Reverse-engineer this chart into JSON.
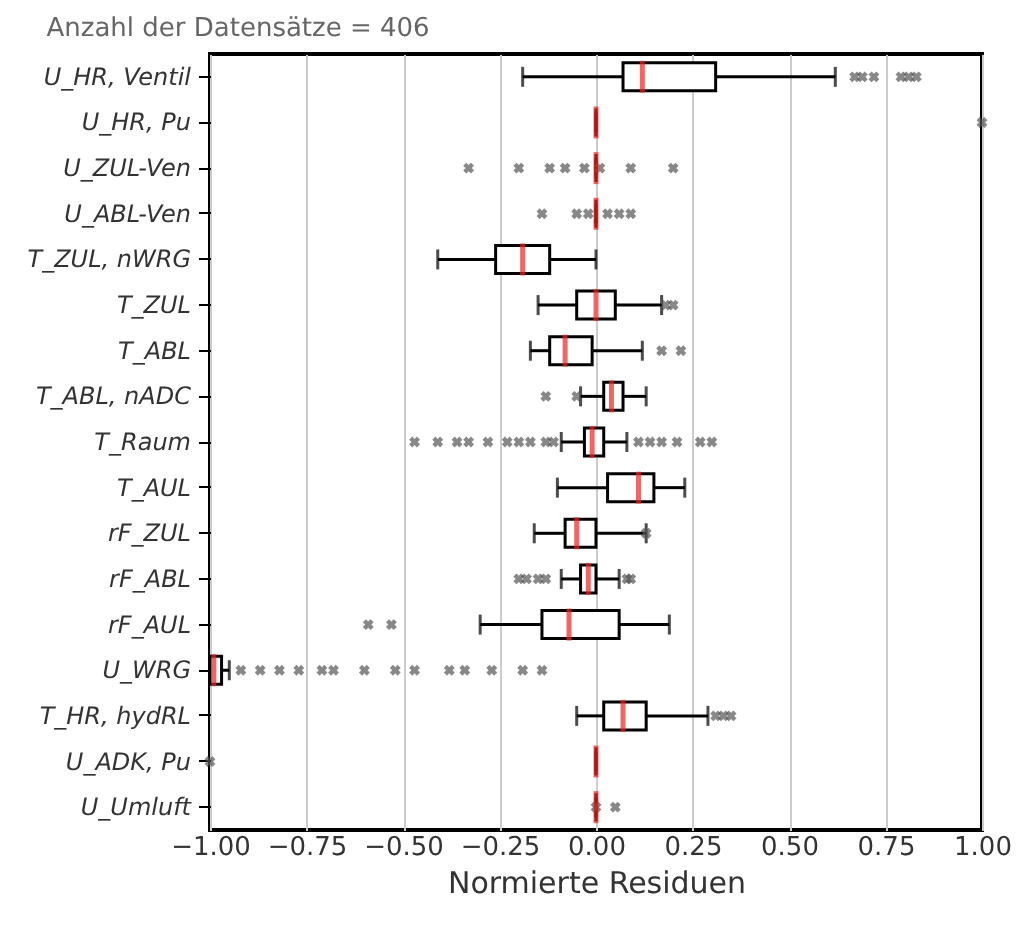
{
  "chart_data": {
    "type": "box",
    "title": "Anzahl der Datensätze = 406",
    "xlabel": "Normierte Residuen",
    "orientation": "horizontal",
    "categories": [
      "U_HR, Ventil",
      "U_HR, Pu",
      "U_ZUL-Ven",
      "U_ABL-Ven",
      "T_ZUL, nWRG",
      "T_ZUL",
      "T_ABL",
      "T_ABL, nADC",
      "T_Raum",
      "T_AUL",
      "rF_ZUL",
      "rF_ABL",
      "rF_AUL",
      "U_WRG",
      "T_HR, hydRL",
      "U_ADK, Pu",
      "U_Umluft"
    ],
    "boxes": [
      {
        "low": -0.19,
        "q1": 0.07,
        "median": 0.12,
        "q3": 0.31,
        "high": 0.62,
        "outliers": [
          0.67,
          0.69,
          0.72,
          0.79,
          0.81,
          0.83
        ]
      },
      {
        "low": 0,
        "q1": 0,
        "median": 0,
        "q3": 0,
        "high": 0,
        "outliers": [
          1.0
        ]
      },
      {
        "low": 0,
        "q1": 0,
        "median": 0,
        "q3": 0,
        "high": 0,
        "outliers": [
          -0.33,
          -0.2,
          -0.12,
          -0.08,
          -0.03,
          0.01,
          0.09,
          0.2
        ]
      },
      {
        "low": 0,
        "q1": 0,
        "median": 0,
        "q3": 0,
        "high": 0,
        "outliers": [
          -0.14,
          -0.05,
          -0.02,
          0.03,
          0.06,
          0.09
        ]
      },
      {
        "low": -0.41,
        "q1": -0.26,
        "median": -0.19,
        "q3": -0.12,
        "high": 0.0
      },
      {
        "low": -0.15,
        "q1": -0.05,
        "median": 0.0,
        "q3": 0.05,
        "high": 0.17,
        "outliers": [
          0.18,
          0.2
        ]
      },
      {
        "low": -0.17,
        "q1": -0.12,
        "median": -0.08,
        "q3": -0.01,
        "high": 0.12,
        "outliers": [
          0.17,
          0.22
        ]
      },
      {
        "low": -0.04,
        "q1": 0.02,
        "median": 0.04,
        "q3": 0.07,
        "high": 0.13,
        "outliers": [
          -0.13,
          -0.05
        ]
      },
      {
        "low": -0.09,
        "q1": -0.03,
        "median": -0.01,
        "q3": 0.02,
        "high": 0.08,
        "outliers": [
          -0.47,
          -0.41,
          -0.36,
          -0.33,
          -0.28,
          -0.23,
          -0.2,
          -0.17,
          -0.13,
          -0.11,
          0.11,
          0.14,
          0.17,
          0.21,
          0.27,
          0.3
        ]
      },
      {
        "low": -0.1,
        "q1": 0.03,
        "median": 0.11,
        "q3": 0.15,
        "high": 0.23
      },
      {
        "low": -0.16,
        "q1": -0.08,
        "median": -0.05,
        "q3": 0.0,
        "high": 0.13,
        "outliers": [
          0.13
        ]
      },
      {
        "low": -0.09,
        "q1": -0.04,
        "median": -0.02,
        "q3": 0.0,
        "high": 0.06,
        "outliers": [
          -0.2,
          -0.18,
          -0.15,
          -0.13,
          0.08,
          0.09
        ]
      },
      {
        "low": -0.3,
        "q1": -0.14,
        "median": -0.07,
        "q3": 0.06,
        "high": 0.19,
        "outliers": [
          -0.59,
          -0.53
        ]
      },
      {
        "low": -1.0,
        "q1": -1.0,
        "median": -0.99,
        "q3": -0.97,
        "high": -0.95,
        "outliers": [
          -0.92,
          -0.87,
          -0.82,
          -0.77,
          -0.71,
          -0.68,
          -0.6,
          -0.52,
          -0.47,
          -0.38,
          -0.34,
          -0.27,
          -0.19,
          -0.14
        ]
      },
      {
        "low": -0.05,
        "q1": 0.02,
        "median": 0.07,
        "q3": 0.13,
        "high": 0.29,
        "outliers": [
          0.31,
          0.33,
          0.35
        ]
      },
      {
        "low": 0,
        "q1": 0,
        "median": 0,
        "q3": 0,
        "high": 0,
        "outliers": [
          -1.0
        ]
      },
      {
        "low": 0,
        "q1": 0,
        "median": 0,
        "q3": 0,
        "high": 0,
        "outliers": [
          0.0,
          0.05
        ]
      }
    ],
    "xlim": [
      -1,
      1
    ],
    "xticks": [
      {
        "value": -1,
        "label": "−1.00"
      },
      {
        "value": -0.75,
        "label": "−0.75"
      },
      {
        "value": -0.5,
        "label": "−0.50"
      },
      {
        "value": -0.25,
        "label": "−0.25"
      },
      {
        "value": 0,
        "label": "0.00"
      },
      {
        "value": 0.25,
        "label": "0.25"
      },
      {
        "value": 0.5,
        "label": "0.50"
      },
      {
        "value": 0.75,
        "label": "0.75"
      },
      {
        "value": 1,
        "label": "1.00"
      }
    ],
    "grid": "x"
  }
}
